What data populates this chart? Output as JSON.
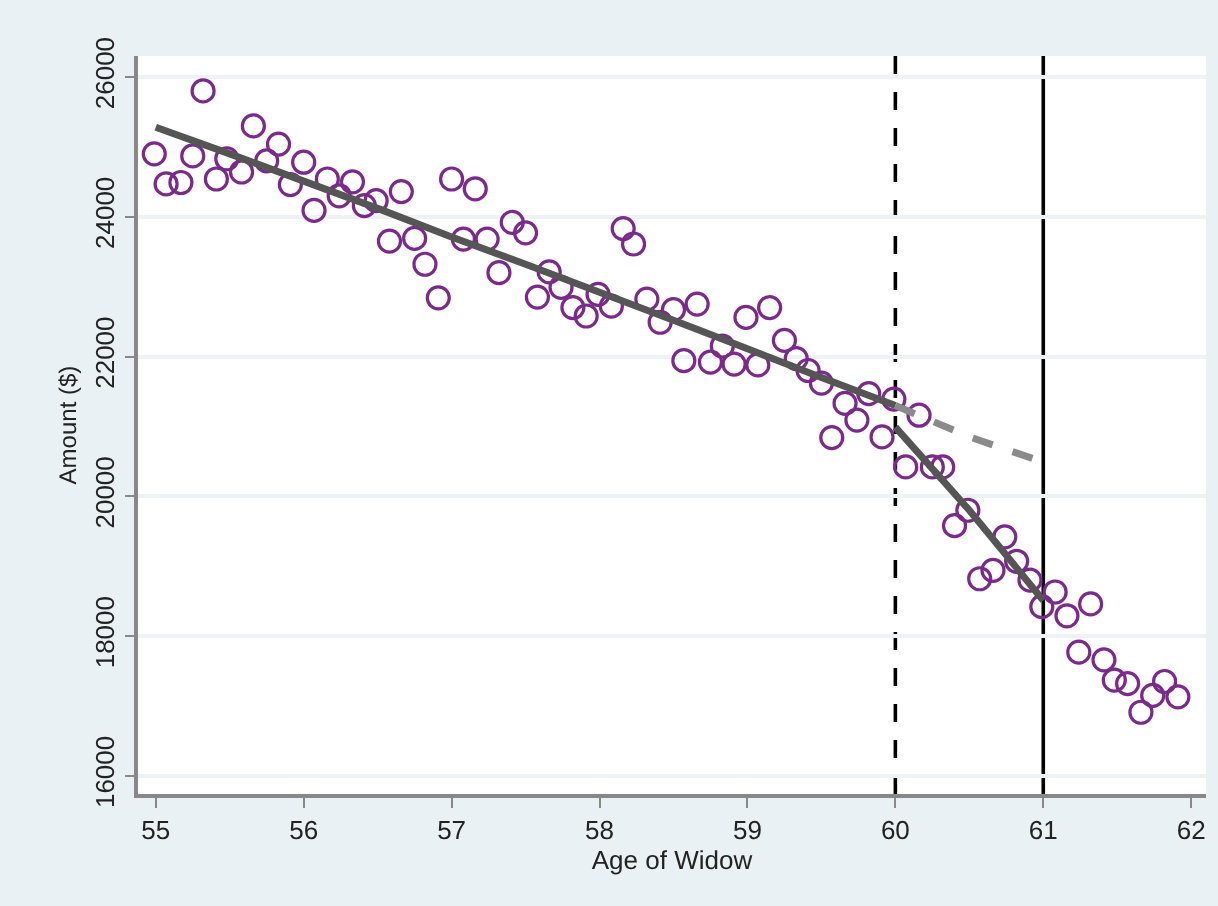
{
  "chart_data": {
    "type": "scatter",
    "xlabel": "Age of Widow",
    "ylabel": "Amount ($)",
    "xlim": [
      54.88,
      62.1
    ],
    "xticks": [
      55,
      56,
      57,
      58,
      59,
      60,
      61,
      62
    ],
    "ylim": [
      15740,
      26300
    ],
    "yticks": [
      16000,
      18000,
      20000,
      22000,
      24000,
      26000
    ],
    "grid": "y",
    "series": [
      {
        "marker": "circle",
        "color": "#7b2a8c",
        "x": [
          54.99,
          55.07,
          55.17,
          55.25,
          55.32,
          55.41,
          55.48,
          55.58,
          55.66,
          55.75,
          55.83,
          55.91,
          56.0,
          56.07,
          56.16,
          56.24,
          56.33,
          56.41,
          56.49,
          56.58,
          56.66,
          56.75,
          56.82,
          56.91,
          57.0,
          57.08,
          57.16,
          57.24,
          57.32,
          57.41,
          57.5,
          57.58,
          57.66,
          57.74,
          57.82,
          57.91,
          57.99,
          58.08,
          58.16,
          58.23,
          58.32,
          58.41,
          58.5,
          58.57,
          58.66,
          58.75,
          58.83,
          58.91,
          58.99,
          59.07,
          59.15,
          59.25,
          59.33,
          59.41,
          59.5,
          59.57,
          59.66,
          59.74,
          59.82,
          59.91,
          59.99,
          60.07,
          60.16,
          60.25,
          60.32,
          60.4,
          60.49,
          60.57,
          60.66,
          60.74,
          60.82,
          60.91,
          60.99,
          61.08,
          61.16,
          61.24,
          61.32,
          61.41,
          61.48,
          61.57,
          61.66,
          61.74,
          61.82,
          61.91
        ],
        "values": [
          24900,
          24470,
          24490,
          24870,
          25800,
          24540,
          24830,
          24640,
          25300,
          24800,
          25040,
          24460,
          24780,
          24090,
          24540,
          24300,
          24500,
          24160,
          24230,
          23650,
          24360,
          23690,
          23320,
          22840,
          24540,
          23680,
          24400,
          23680,
          23200,
          23920,
          23770,
          22850,
          23210,
          22990,
          22700,
          22580,
          22890,
          22720,
          23830,
          23610,
          22820,
          22490,
          22670,
          21940,
          22750,
          21920,
          22150,
          21890,
          22560,
          21880,
          22700,
          22230,
          21970,
          21800,
          21620,
          20840,
          21330,
          21090,
          21470,
          20850,
          21390,
          20420,
          21160,
          20420,
          20420,
          19580,
          19800,
          18820,
          18940,
          19420,
          19070,
          18800,
          18420,
          18630,
          18290,
          17770,
          18460,
          17660,
          17370,
          17320,
          16910,
          17150,
          17350,
          17130
        ]
      },
      {
        "type": "line",
        "color": "#555555",
        "line_style": "solid",
        "x": [
          55,
          55.5,
          56,
          56.5,
          57,
          57.5,
          58,
          58.5,
          59,
          59.5,
          60
        ],
        "values": [
          25280,
          24900,
          24510,
          24120,
          23710,
          23320,
          22920,
          22520,
          22110,
          21700,
          21300
        ]
      },
      {
        "type": "line",
        "color": "#555555",
        "line_style": "solid",
        "x": [
          60,
          60.5,
          61
        ],
        "values": [
          20990,
          19800,
          18510
        ]
      },
      {
        "type": "line",
        "color": "#8a8a8a",
        "line_style": "dashed",
        "x": [
          60,
          60.5,
          61
        ],
        "values": [
          21300,
          20850,
          20490
        ]
      }
    ],
    "ref_lines": [
      {
        "axis": "x",
        "value": 60,
        "color": "#000000",
        "line_style": "dashed"
      },
      {
        "axis": "x",
        "value": 61,
        "color": "#000000",
        "line_style": "solid"
      }
    ]
  }
}
